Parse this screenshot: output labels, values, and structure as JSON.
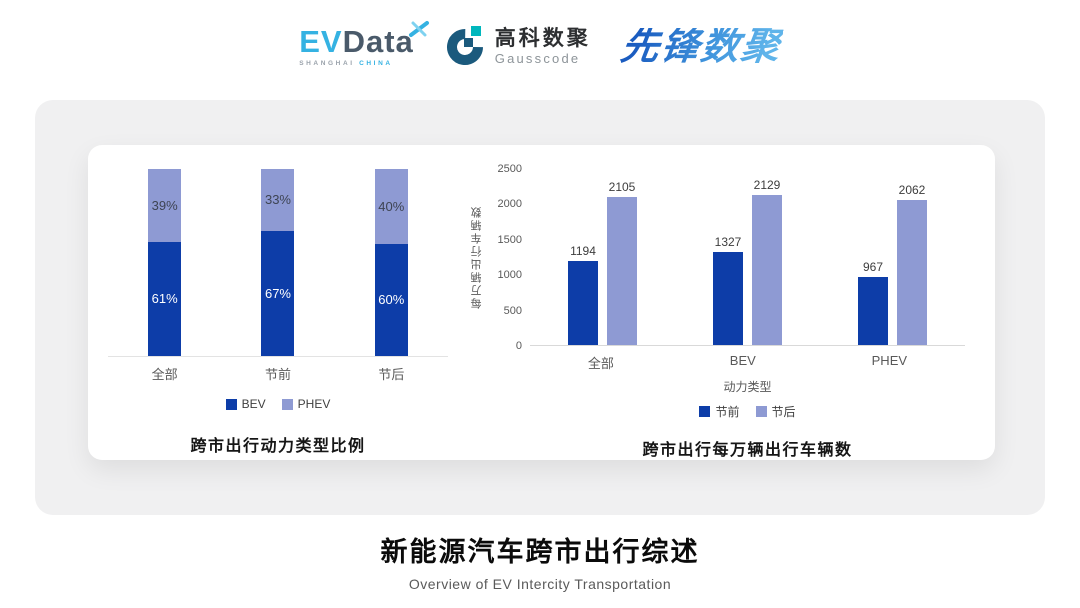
{
  "header": {
    "evdata": {
      "ev": "EV",
      "data": "Data",
      "shanghai": "SHANGHAI",
      "china": "CHINA"
    },
    "gausscode": {
      "cn": "高科数聚",
      "en": "Gausscode"
    },
    "pioneer": {
      "text": "先锋数聚"
    }
  },
  "colors": {
    "series_dark_blue": "#0d3da8",
    "series_light_blue": "#8e9ad3",
    "evdata_cyan": "#35b2e2",
    "evdata_slate": "#4a5a6a",
    "gauss_dark_blue": "#1b5a7d",
    "gauss_teal": "#00b7bd",
    "panel_gray": "#f0f0f1"
  },
  "chart_data": [
    {
      "type": "bar",
      "subtype": "stacked-percent",
      "title": "跨市出行动力类型比例",
      "categories": [
        "全部",
        "节前",
        "节后"
      ],
      "series": [
        {
          "name": "BEV",
          "values": [
            61,
            67,
            60
          ],
          "color": "#0d3da8",
          "label_color": "#ffffff"
        },
        {
          "name": "PHEV",
          "values": [
            39,
            33,
            40
          ],
          "color": "#8e9ad3",
          "label_color": "#3e4453"
        }
      ],
      "value_suffix": "%",
      "ylim": [
        0,
        100
      ],
      "grid": false,
      "legend_position": "bottom"
    },
    {
      "type": "bar",
      "subtype": "grouped",
      "title": "跨市出行每万辆出行车辆数",
      "categories": [
        "全部",
        "BEV",
        "PHEV"
      ],
      "xlabel": "动力类型",
      "ylabel": "每万辆出行车辆数",
      "ylim": [
        0,
        2500
      ],
      "yticks": [
        0,
        500,
        1000,
        1500,
        2000,
        2500
      ],
      "series": [
        {
          "name": "节前",
          "values": [
            1194,
            1327,
            967
          ],
          "color": "#0d3da8"
        },
        {
          "name": "节后",
          "values": [
            2105,
            2129,
            2062
          ],
          "color": "#8e9ad3"
        }
      ],
      "grid": false,
      "legend_position": "bottom"
    }
  ],
  "footer": {
    "title": "新能源汽车跨市出行综述",
    "subtitle": "Overview of EV Intercity Transportation"
  }
}
